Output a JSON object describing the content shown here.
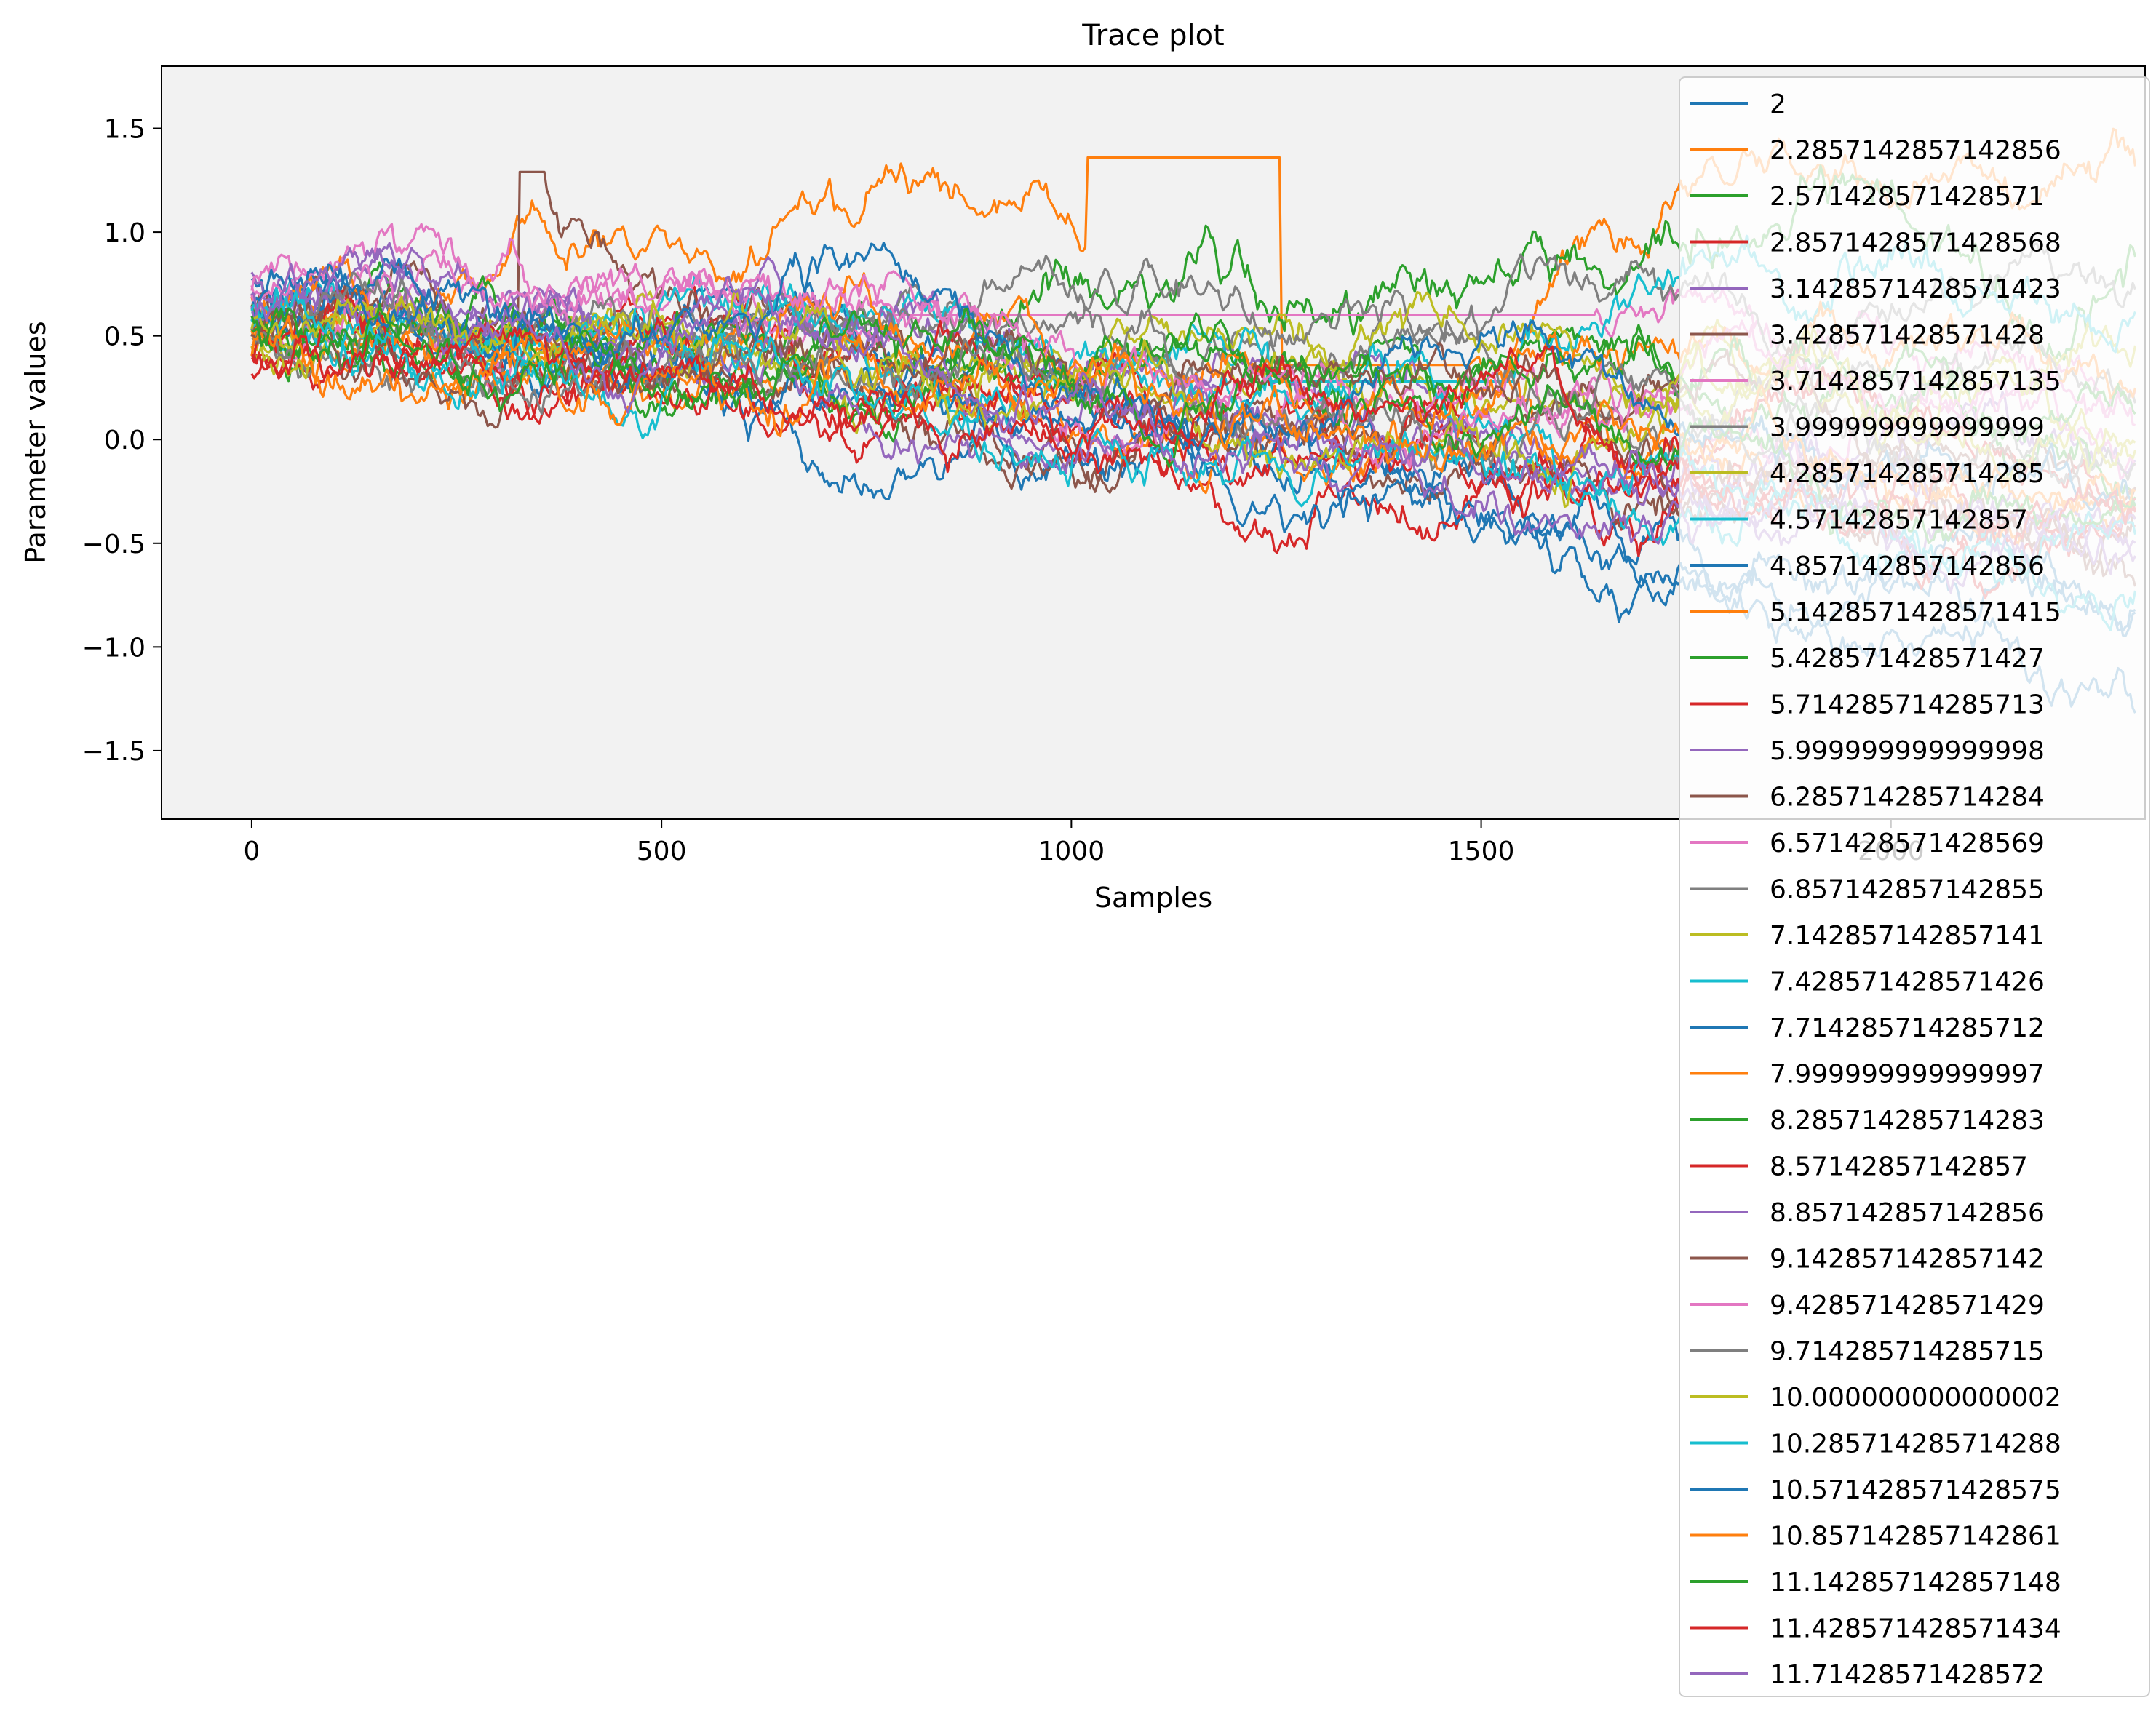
{
  "chart_data": {
    "type": "line",
    "title": "Trace plot",
    "xlabel": "Samples",
    "ylabel": "Parameter values",
    "xlim": [
      -110,
      2310
    ],
    "ylim": [
      -1.83,
      1.8
    ],
    "xticks": [
      0,
      500,
      1000,
      1500,
      2000
    ],
    "xtick_labels": [
      "0",
      "500",
      "1000",
      "1500",
      "2000"
    ],
    "yticks": [
      -1.5,
      -1.0,
      -0.5,
      0.0,
      0.5,
      1.0,
      1.5
    ],
    "ytick_labels": [
      "−1.5",
      "−1.0",
      "−0.5",
      "0.0",
      "0.5",
      "1.0",
      "1.5"
    ],
    "grid": false,
    "legend_position": "top-right",
    "plot_background": "#f2f2f2",
    "n_samples": 2300,
    "palette": [
      "#1f77b4",
      "#ff7f0e",
      "#2ca02c",
      "#d62728",
      "#9467bd",
      "#8c564b",
      "#e377c2",
      "#7f7f7f",
      "#bcbd22",
      "#17becf"
    ],
    "series": [
      {
        "name": "2",
        "start": 0.72,
        "end": -1.05,
        "stuck": [],
        "volatility": 0.02
      },
      {
        "name": "2.2857142857142856",
        "start": 0.62,
        "end": 1.3,
        "stuck": [
          [
            1020,
            1255,
            1.36
          ],
          [
            1255,
            1488,
            0.36
          ]
        ],
        "volatility": 0.02
      },
      {
        "name": "2.571428571428571",
        "start": 0.55,
        "end": 1.0,
        "stuck": [],
        "volatility": 0.022
      },
      {
        "name": "2.8571428571428568",
        "start": 0.45,
        "end": -0.4,
        "stuck": [],
        "volatility": 0.02
      },
      {
        "name": "3.1428571428571423",
        "start": 0.8,
        "end": -0.3,
        "stuck": [
          [
            118,
            120,
            1.05
          ]
        ],
        "volatility": 0.02
      },
      {
        "name": "3.428571428571428",
        "start": 0.6,
        "end": -0.7,
        "stuck": [
          [
            325,
            360,
            1.29
          ]
        ],
        "volatility": 0.02
      },
      {
        "name": "3.7142857142857135",
        "start": 0.7,
        "end": 0.4,
        "stuck": [
          [
            785,
            1640,
            0.6
          ]
        ],
        "volatility": 0.018
      },
      {
        "name": "3.999999999999999",
        "start": 0.5,
        "end": 0.5,
        "stuck": [],
        "volatility": 0.018
      },
      {
        "name": "4.285714285714285",
        "start": 0.45,
        "end": 0.4,
        "stuck": [],
        "volatility": 0.018
      },
      {
        "name": "4.57142857142857",
        "start": 0.65,
        "end": 0.6,
        "stuck": [
          [
            1240,
            1540,
            0.28
          ]
        ],
        "volatility": 0.02
      },
      {
        "name": "4.857142857142856",
        "start": 0.58,
        "end": -0.8,
        "stuck": [],
        "volatility": 0.019
      },
      {
        "name": "5.1428571428571415",
        "start": 0.52,
        "end": -0.4,
        "stuck": [],
        "volatility": 0.019
      },
      {
        "name": "5.428571428571427",
        "start": 0.6,
        "end": -0.2,
        "stuck": [],
        "volatility": 0.019
      },
      {
        "name": "5.714285714285713",
        "start": 0.4,
        "end": -0.5,
        "stuck": [],
        "volatility": 0.019
      },
      {
        "name": "5.999999999999998",
        "start": 0.7,
        "end": -0.55,
        "stuck": [],
        "volatility": 0.019
      },
      {
        "name": "6.285714285714284",
        "start": 0.55,
        "end": -0.6,
        "stuck": [],
        "volatility": 0.019
      },
      {
        "name": "6.571428571428569",
        "start": 0.75,
        "end": -0.1,
        "stuck": [],
        "volatility": 0.019
      },
      {
        "name": "6.857142857142855",
        "start": 0.5,
        "end": 0.1,
        "stuck": [],
        "volatility": 0.019
      },
      {
        "name": "7.142857142857141",
        "start": 0.48,
        "end": 0.0,
        "stuck": [],
        "volatility": 0.019
      },
      {
        "name": "7.428571428571426",
        "start": 0.62,
        "end": -0.7,
        "stuck": [],
        "volatility": 0.019
      },
      {
        "name": "7.714285714285712",
        "start": 0.68,
        "end": -1.4,
        "stuck": [],
        "volatility": 0.02
      },
      {
        "name": "7.999999999999997",
        "start": 0.5,
        "end": 0.0,
        "stuck": [],
        "volatility": 0.019
      },
      {
        "name": "8.285714285714283",
        "start": 0.52,
        "end": 0.2,
        "stuck": [],
        "volatility": 0.019
      },
      {
        "name": "8.57142857142857",
        "start": 0.42,
        "end": -0.3,
        "stuck": [],
        "volatility": 0.019
      },
      {
        "name": "8.857142857142856",
        "start": 0.66,
        "end": -0.5,
        "stuck": [],
        "volatility": 0.019
      },
      {
        "name": "9.142857142857142",
        "start": 0.56,
        "end": -0.2,
        "stuck": [],
        "volatility": 0.019
      },
      {
        "name": "9.428571428571429",
        "start": 0.72,
        "end": 0.1,
        "stuck": [],
        "volatility": 0.019
      },
      {
        "name": "9.714285714285715",
        "start": 0.46,
        "end": 0.0,
        "stuck": [],
        "volatility": 0.019
      },
      {
        "name": "10.000000000000002",
        "start": 0.5,
        "end": -0.1,
        "stuck": [],
        "volatility": 0.019
      },
      {
        "name": "10.285714285714288",
        "start": 0.6,
        "end": -0.6,
        "stuck": [],
        "volatility": 0.019
      },
      {
        "name": "10.571428571428575",
        "start": 0.64,
        "end": -0.4,
        "stuck": [],
        "volatility": 0.019
      },
      {
        "name": "10.857142857142861",
        "start": 0.48,
        "end": -0.2,
        "stuck": [],
        "volatility": 0.019
      },
      {
        "name": "11.142857142857148",
        "start": 0.54,
        "end": -0.3,
        "stuck": [],
        "volatility": 0.019
      },
      {
        "name": "11.428571428571434",
        "start": 0.44,
        "end": -0.4,
        "stuck": [],
        "volatility": 0.019
      },
      {
        "name": "11.71428571428572",
        "start": 0.7,
        "end": -0.5,
        "stuck": [],
        "volatility": 0.019
      }
    ]
  }
}
